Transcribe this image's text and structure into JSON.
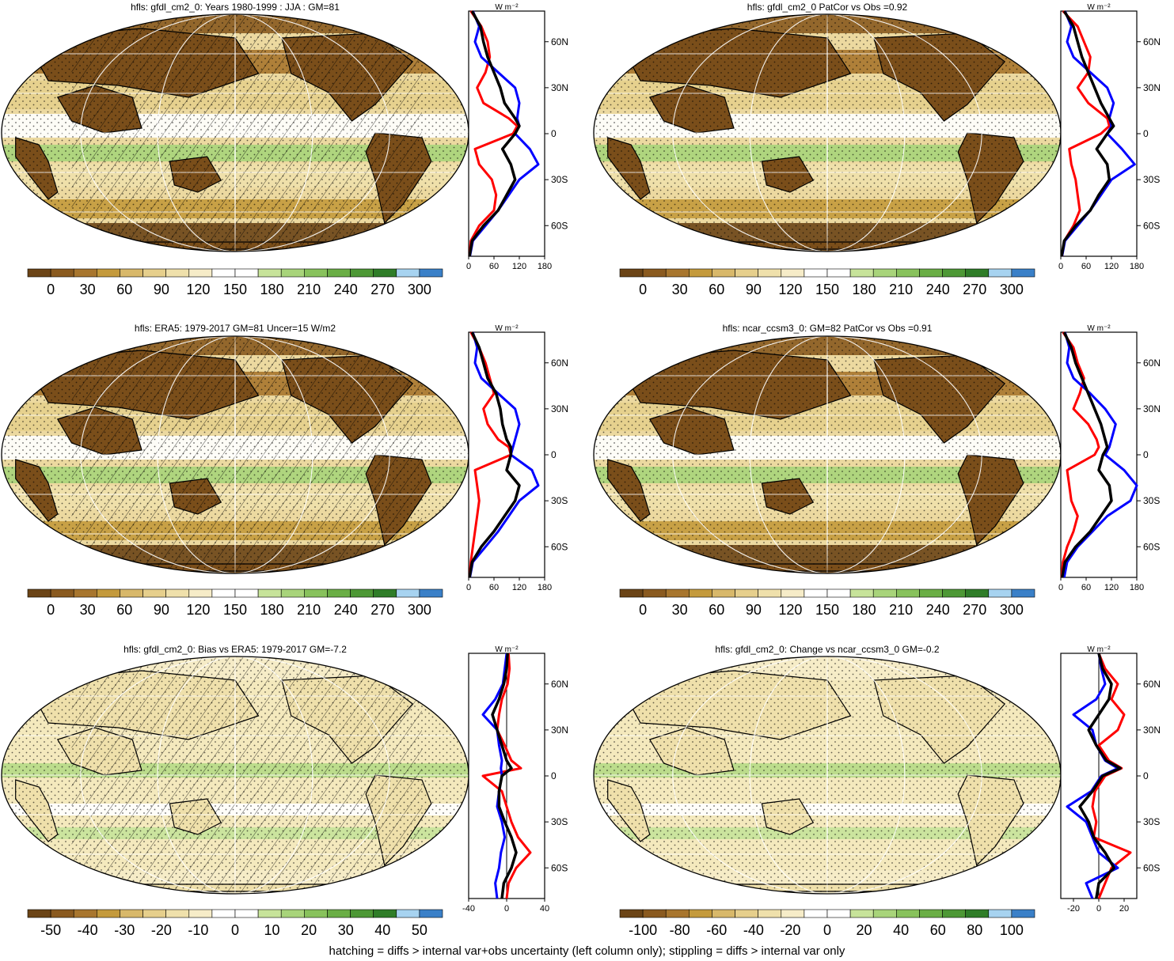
{
  "figure": {
    "footnote": "hatching = diffs > internal var+obs uncertainty (left column only); stippling = diffs > internal var only"
  },
  "colors": {
    "model_line": "#ff0000",
    "obs_line": "#0000ff",
    "mean_line": "#000000",
    "land_outline": "#000000",
    "ocean_bg": "#f3e6b8",
    "palette_abs": [
      "#6b4416",
      "#8a5a1f",
      "#a8762e",
      "#c49a3c",
      "#d8b86a",
      "#e6cf8c",
      "#efe0ab",
      "#f6ecc8",
      "#ffffff",
      "#ffffff",
      "#c7e39a",
      "#a8d47a",
      "#88c25c",
      "#6aae45",
      "#4d9835",
      "#2f7d28",
      "#a7d3f0",
      "#3a80c8"
    ],
    "palette_diff": [
      "#6b4416",
      "#8a5a1f",
      "#a8762e",
      "#c49a3c",
      "#d8b86a",
      "#e6cf8c",
      "#efe0ab",
      "#f6ecc8",
      "#ffffff",
      "#ffffff",
      "#c7e39a",
      "#a8d47a",
      "#88c25c",
      "#6aae45",
      "#4d9835",
      "#2f7d28",
      "#a7d3f0",
      "#3a80c8"
    ]
  },
  "chart_data": [
    {
      "type": "heatmap",
      "title": "hfls: gfdl_cm2_0: Years 1980-1999 : JJA : GM=81",
      "colorbar_ticks": [
        "0",
        "30",
        "60",
        "90",
        "120",
        "150",
        "180",
        "210",
        "240",
        "270",
        "300"
      ],
      "overlay": "hatching+stippling",
      "profile": {
        "type": "line",
        "unit_label": "W m⁻²",
        "xlim": [
          0,
          180
        ],
        "xticks": [
          "0",
          "60",
          "120",
          "180"
        ],
        "ylim": [
          -80,
          80
        ],
        "yticks": [
          "60N",
          "30N",
          "0",
          "30S",
          "60S"
        ],
        "series": [
          {
            "color": "red",
            "lat": [
              80,
              70,
              60,
              50,
              40,
              30,
              20,
              10,
              5,
              0,
              -10,
              -20,
              -30,
              -40,
              -50,
              -60,
              -70,
              -80
            ],
            "values": [
              5,
              30,
              45,
              50,
              40,
              20,
              35,
              95,
              115,
              105,
              15,
              25,
              55,
              65,
              60,
              25,
              5,
              2
            ]
          },
          {
            "color": "blue",
            "lat": [
              80,
              70,
              60,
              50,
              40,
              30,
              20,
              10,
              5,
              0,
              -10,
              -20,
              -30,
              -40,
              -50,
              -60,
              -70,
              -80
            ],
            "values": [
              10,
              25,
              15,
              30,
              70,
              110,
              120,
              115,
              120,
              110,
              145,
              165,
              120,
              95,
              70,
              40,
              10,
              3
            ]
          },
          {
            "color": "black",
            "lat": [
              80,
              70,
              60,
              50,
              40,
              30,
              20,
              10,
              5,
              0,
              -10,
              -20,
              -30,
              -40,
              -50,
              -60,
              -70,
              -80
            ],
            "values": [
              8,
              28,
              35,
              45,
              60,
              75,
              85,
              110,
              120,
              110,
              80,
              100,
              110,
              90,
              70,
              35,
              8,
              2
            ]
          }
        ]
      }
    },
    {
      "type": "heatmap",
      "title": "hfls: gfdl_cm2_0 PatCor vs Obs =0.92",
      "colorbar_ticks": [
        "0",
        "30",
        "60",
        "90",
        "120",
        "150",
        "180",
        "210",
        "240",
        "270",
        "300"
      ],
      "overlay": "stippling",
      "profile": {
        "type": "line",
        "unit_label": "W m⁻²",
        "xlim": [
          0,
          180
        ],
        "xticks": [
          "0",
          "60",
          "120",
          "180"
        ],
        "ylim": [
          -80,
          80
        ],
        "yticks": [
          "60N",
          "30N",
          "0",
          "30S",
          "60S"
        ],
        "series": [
          {
            "color": "red",
            "lat": [
              80,
              70,
              60,
              50,
              40,
              30,
              20,
              10,
              5,
              0,
              -10,
              -20,
              -30,
              -40,
              -50,
              -60,
              -70,
              -80
            ],
            "values": [
              5,
              40,
              55,
              70,
              65,
              40,
              65,
              110,
              115,
              95,
              20,
              25,
              35,
              40,
              45,
              30,
              8,
              3
            ]
          },
          {
            "color": "blue",
            "lat": [
              80,
              70,
              60,
              50,
              40,
              30,
              20,
              10,
              5,
              0,
              -10,
              -20,
              -30,
              -40,
              -50,
              -60,
              -70,
              -80
            ],
            "values": [
              10,
              25,
              15,
              30,
              70,
              110,
              125,
              115,
              120,
              110,
              145,
              175,
              120,
              95,
              70,
              40,
              10,
              3
            ]
          },
          {
            "color": "black",
            "lat": [
              80,
              70,
              60,
              50,
              40,
              30,
              20,
              10,
              5,
              0,
              -10,
              -20,
              -30,
              -40,
              -50,
              -60,
              -70,
              -80
            ],
            "values": [
              8,
              30,
              40,
              50,
              65,
              80,
              95,
              115,
              125,
              110,
              85,
              110,
              115,
              90,
              70,
              35,
              8,
              2
            ]
          }
        ]
      }
    },
    {
      "type": "heatmap",
      "title": "hfls: ERA5: 1979-2017 GM=81 Uncer=15 W/m2",
      "colorbar_ticks": [
        "0",
        "30",
        "60",
        "90",
        "120",
        "150",
        "180",
        "210",
        "240",
        "270",
        "300"
      ],
      "overlay": "hatching+stippling",
      "profile": {
        "type": "line",
        "unit_label": "W m⁻²",
        "xlim": [
          0,
          180
        ],
        "xticks": [
          "0",
          "60",
          "120",
          "180"
        ],
        "ylim": [
          -80,
          80
        ],
        "yticks": [
          "60N",
          "30N",
          "0",
          "30S",
          "60S"
        ],
        "series": [
          {
            "color": "red",
            "lat": [
              80,
              70,
              60,
              50,
              40,
              30,
              20,
              10,
              5,
              0,
              -10,
              -20,
              -30,
              -40,
              -50,
              -60,
              -70,
              -80
            ],
            "values": [
              5,
              25,
              40,
              50,
              60,
              35,
              45,
              70,
              95,
              100,
              15,
              20,
              25,
              20,
              15,
              10,
              5,
              2
            ]
          },
          {
            "color": "blue",
            "lat": [
              80,
              70,
              60,
              50,
              40,
              30,
              20,
              10,
              5,
              0,
              -10,
              -20,
              -30,
              -40,
              -50,
              -60,
              -70,
              -80
            ],
            "values": [
              10,
              20,
              15,
              30,
              70,
              110,
              120,
              110,
              105,
              100,
              150,
              165,
              120,
              95,
              70,
              40,
              10,
              3
            ]
          },
          {
            "color": "black",
            "lat": [
              80,
              70,
              60,
              50,
              40,
              30,
              20,
              10,
              5,
              0,
              -10,
              -20,
              -30,
              -40,
              -50,
              -60,
              -70,
              -80
            ],
            "values": [
              8,
              25,
              35,
              45,
              65,
              75,
              80,
              90,
              100,
              100,
              90,
              120,
              110,
              85,
              60,
              30,
              8,
              2
            ]
          }
        ]
      }
    },
    {
      "type": "heatmap",
      "title": "hfls: ncar_ccsm3_0: GM=82 PatCor vs Obs =0.91",
      "colorbar_ticks": [
        "0",
        "30",
        "60",
        "90",
        "120",
        "150",
        "180",
        "210",
        "240",
        "270",
        "300"
      ],
      "overlay": "stippling",
      "profile": {
        "type": "line",
        "unit_label": "W m⁻²",
        "xlim": [
          0,
          180
        ],
        "xticks": [
          "0",
          "60",
          "120",
          "180"
        ],
        "ylim": [
          -80,
          80
        ],
        "yticks": [
          "60N",
          "30N",
          "0",
          "30S",
          "60S"
        ],
        "series": [
          {
            "color": "red",
            "lat": [
              80,
              70,
              60,
              50,
              40,
              30,
              20,
              10,
              5,
              0,
              -10,
              -20,
              -30,
              -40,
              -50,
              -60,
              -70,
              -80
            ],
            "values": [
              5,
              30,
              40,
              55,
              45,
              30,
              65,
              85,
              90,
              80,
              15,
              20,
              25,
              40,
              30,
              15,
              5,
              2
            ]
          },
          {
            "color": "blue",
            "lat": [
              80,
              70,
              60,
              50,
              40,
              30,
              20,
              10,
              5,
              0,
              -10,
              -20,
              -30,
              -40,
              -50,
              -60,
              -70,
              -80
            ],
            "values": [
              10,
              20,
              15,
              30,
              70,
              105,
              130,
              120,
              115,
              105,
              150,
              180,
              165,
              110,
              75,
              40,
              15,
              8
            ]
          },
          {
            "color": "black",
            "lat": [
              80,
              70,
              60,
              50,
              40,
              30,
              20,
              10,
              5,
              0,
              -10,
              -20,
              -30,
              -40,
              -50,
              -60,
              -70,
              -80
            ],
            "values": [
              8,
              25,
              35,
              50,
              65,
              80,
              95,
              105,
              110,
              100,
              90,
              115,
              120,
              95,
              70,
              35,
              10,
              3
            ]
          }
        ]
      }
    },
    {
      "type": "heatmap",
      "title": "hfls: gfdl_cm2_0: Bias vs ERA5: 1979-2017 GM=-7.2",
      "colorbar_ticks": [
        "-50",
        "-40",
        "-30",
        "-20",
        "-10",
        "0",
        "10",
        "20",
        "30",
        "40",
        "50"
      ],
      "overlay": "hatching+stippling",
      "profile": {
        "type": "line",
        "unit_label": "W m⁻²",
        "xlim": [
          -40,
          40
        ],
        "xticks": [
          "-40",
          "0",
          "40"
        ],
        "ylim": [
          -80,
          80
        ],
        "yticks": [
          "60N",
          "30N",
          "0",
          "30S",
          "60S"
        ],
        "series": [
          {
            "color": "red",
            "lat": [
              80,
              70,
              60,
              50,
              40,
              30,
              20,
              10,
              5,
              0,
              -10,
              -20,
              -30,
              -40,
              -50,
              -60,
              -70,
              -80
            ],
            "values": [
              2,
              3,
              1,
              -5,
              -8,
              -10,
              -2,
              5,
              15,
              -25,
              -5,
              0,
              5,
              12,
              25,
              10,
              2,
              0
            ]
          },
          {
            "color": "blue",
            "lat": [
              80,
              70,
              60,
              50,
              40,
              30,
              20,
              10,
              5,
              0,
              -10,
              -20,
              -30,
              -40,
              -50,
              -60,
              -70,
              -80
            ],
            "values": [
              0,
              -2,
              -4,
              -12,
              -25,
              -10,
              -8,
              -5,
              -6,
              -5,
              -8,
              -10,
              -5,
              -2,
              -6,
              -8,
              -12,
              -10
            ]
          },
          {
            "color": "black",
            "lat": [
              80,
              70,
              60,
              50,
              40,
              30,
              20,
              10,
              5,
              0,
              -10,
              -20,
              -30,
              -40,
              -50,
              -60,
              -70,
              -80
            ],
            "values": [
              1,
              0,
              -3,
              -8,
              -15,
              -10,
              -5,
              0,
              5,
              -5,
              -8,
              -8,
              -2,
              5,
              10,
              5,
              -3,
              -5
            ]
          }
        ]
      }
    },
    {
      "type": "heatmap",
      "title": "hfls: gfdl_cm2_0: Change vs ncar_ccsm3_0 GM=-0.2",
      "colorbar_ticks": [
        "-100",
        "-80",
        "-60",
        "-40",
        "-20",
        "0",
        "20",
        "40",
        "60",
        "80",
        "100"
      ],
      "overlay": "stippling",
      "profile": {
        "type": "line",
        "unit_label": "W m⁻²",
        "xlim": [
          -30,
          30
        ],
        "xticks": [
          "-20",
          "0",
          "20"
        ],
        "ylim": [
          -80,
          80
        ],
        "yticks": [
          "60N",
          "30N",
          "0",
          "30S",
          "60S"
        ],
        "series": [
          {
            "color": "red",
            "lat": [
              80,
              70,
              60,
              50,
              40,
              30,
              20,
              10,
              5,
              0,
              -10,
              -20,
              -30,
              -40,
              -50,
              -60,
              -70,
              -80
            ],
            "values": [
              0,
              5,
              15,
              10,
              20,
              15,
              0,
              8,
              18,
              5,
              -3,
              -5,
              -2,
              -4,
              25,
              10,
              5,
              0
            ]
          },
          {
            "color": "blue",
            "lat": [
              80,
              70,
              60,
              50,
              40,
              30,
              20,
              10,
              5,
              0,
              -10,
              -20,
              -30,
              -40,
              -50,
              -60,
              -70,
              -80
            ],
            "values": [
              0,
              2,
              5,
              -2,
              -20,
              -5,
              -2,
              5,
              15,
              2,
              -6,
              -25,
              -10,
              -5,
              0,
              15,
              -10,
              -5
            ]
          },
          {
            "color": "black",
            "lat": [
              80,
              70,
              60,
              50,
              40,
              30,
              20,
              10,
              5,
              0,
              -10,
              -20,
              -30,
              -40,
              -50,
              -60,
              -70,
              -80
            ],
            "values": [
              0,
              3,
              10,
              8,
              0,
              -8,
              -2,
              6,
              17,
              3,
              -5,
              -15,
              -8,
              -4,
              5,
              12,
              0,
              -2
            ]
          }
        ]
      }
    }
  ]
}
